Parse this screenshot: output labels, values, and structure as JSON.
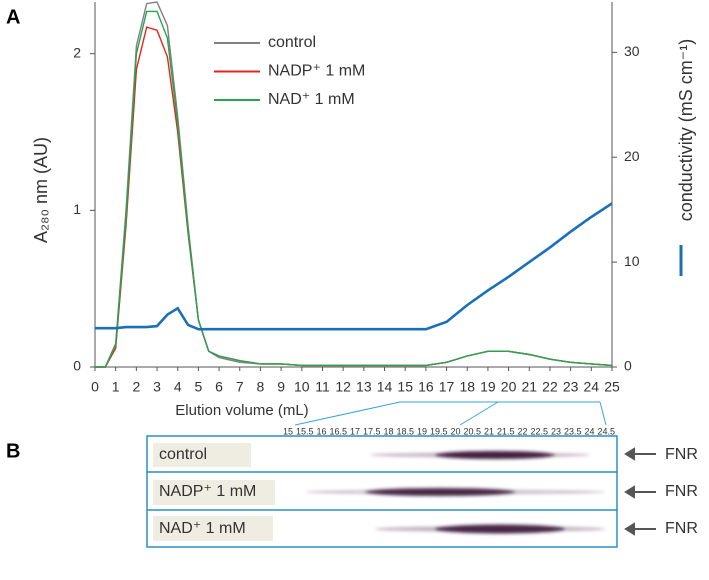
{
  "panel_labels": [
    "A",
    "B"
  ],
  "chart_data": {
    "type": "line",
    "ylabel": "A₂₈₀ nm (AU)",
    "y2label": "conductivity (mS cm⁻¹)",
    "xlabel": "Elution volume  (mL)",
    "x": [
      0,
      0.5,
      1,
      1.5,
      2,
      2.5,
      3,
      3.5,
      4,
      4.5,
      5,
      5.5,
      6,
      7,
      8,
      9,
      10,
      11,
      12,
      13,
      14,
      15,
      16,
      17,
      18,
      19,
      20,
      21,
      22,
      23,
      24,
      25
    ],
    "series": [
      {
        "name": "control",
        "color": "#808080",
        "values": [
          0,
          0,
          0.15,
          1.0,
          2.05,
          2.32,
          2.33,
          2.18,
          1.6,
          0.9,
          0.3,
          0.1,
          0.06,
          0.03,
          0.02,
          0.02,
          0.01,
          0.01,
          0.01,
          0.01,
          0.01,
          0.01,
          0.01,
          0.03,
          0.07,
          0.1,
          0.1,
          0.08,
          0.05,
          0.03,
          0.02,
          0.01
        ]
      },
      {
        "name": "NADP⁺ 1 mM",
        "color": "#e8231e",
        "values": [
          0,
          0,
          0.12,
          0.9,
          1.9,
          2.17,
          2.15,
          1.98,
          1.5,
          0.85,
          0.3,
          0.1,
          0.07,
          0.04,
          0.02,
          0.02,
          0.01,
          0.01,
          0.01,
          0.01,
          0.01,
          0.01,
          0.01,
          0.03,
          0.07,
          0.1,
          0.1,
          0.08,
          0.05,
          0.03,
          0.02,
          0.01
        ]
      },
      {
        "name": "NAD⁺ 1 mM",
        "color": "#22a650",
        "values": [
          0,
          0,
          0.14,
          0.95,
          2.0,
          2.27,
          2.27,
          2.1,
          1.55,
          0.87,
          0.3,
          0.1,
          0.07,
          0.04,
          0.02,
          0.02,
          0.01,
          0.01,
          0.01,
          0.01,
          0.01,
          0.01,
          0.01,
          0.03,
          0.07,
          0.1,
          0.1,
          0.08,
          0.05,
          0.03,
          0.02,
          0.01
        ]
      },
      {
        "color": "#1b6fb8",
        "axis": "y2",
        "values": [
          3.7,
          3.7,
          3.7,
          3.8,
          3.8,
          3.8,
          3.9,
          5.0,
          5.6,
          4.0,
          3.6,
          3.6,
          3.6,
          3.6,
          3.6,
          3.6,
          3.6,
          3.6,
          3.6,
          3.6,
          3.6,
          3.6,
          3.6,
          4.3,
          5.9,
          7.3,
          8.6,
          10.0,
          11.4,
          12.9,
          14.3,
          15.6
        ]
      }
    ],
    "xlim": [
      0,
      25
    ],
    "xticks": [
      0,
      1,
      2,
      3,
      4,
      5,
      6,
      7,
      8,
      9,
      10,
      11,
      12,
      13,
      14,
      15,
      16,
      17,
      18,
      19,
      20,
      21,
      22,
      23,
      24,
      25
    ],
    "ylim": [
      0,
      2.33
    ],
    "yticks": [
      0,
      1,
      2
    ],
    "y2lim": [
      0,
      34.8
    ],
    "y2ticks": [
      0,
      10,
      20,
      30
    ]
  },
  "gel": {
    "fractions": [
      15,
      15.5,
      16,
      16.5,
      17,
      17.5,
      18,
      18.5,
      19,
      19.5,
      20,
      20.5,
      21,
      21.5,
      22,
      22.5,
      23,
      23.5,
      24,
      24.5
    ],
    "lanes": [
      {
        "label": "control",
        "marker": "FNR"
      },
      {
        "label": "NADP⁺ 1 mM",
        "marker": "FNR"
      },
      {
        "label": "NAD⁺ 1 mM",
        "marker": "FNR"
      }
    ]
  }
}
